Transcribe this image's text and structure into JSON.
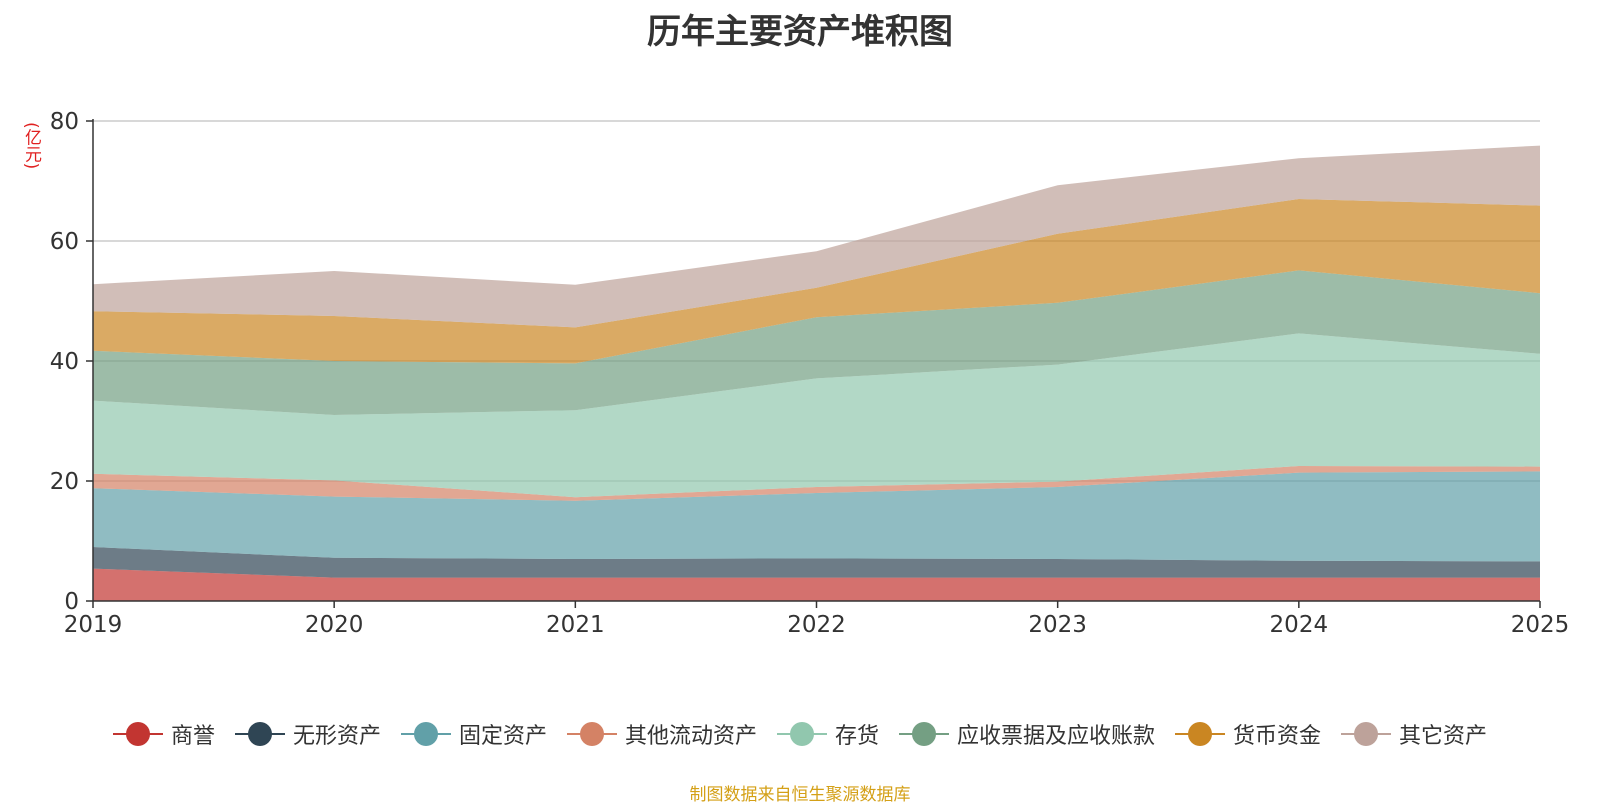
{
  "chart_data": {
    "type": "area",
    "stacked": true,
    "title": "历年主要资产堆积图",
    "unit_label": "(亿元)",
    "source": "制图数据来自恒生聚源数据库",
    "x": [
      "2019",
      "2020",
      "2021",
      "2022",
      "2023",
      "2024",
      "2025"
    ],
    "ylim": [
      0,
      80
    ],
    "yticks": [
      0,
      20,
      40,
      60,
      80
    ],
    "grid": true,
    "legend_position": "bottom",
    "series": [
      {
        "name": "商誉",
        "color": "#c23531",
        "values": [
          5.4,
          3.9,
          3.9,
          3.9,
          3.9,
          3.9,
          3.9
        ]
      },
      {
        "name": "无形资产",
        "color": "#2f4554",
        "values": [
          3.6,
          3.3,
          3.1,
          3.2,
          3.1,
          2.8,
          2.7
        ]
      },
      {
        "name": "固定资产",
        "color": "#61a0a8",
        "values": [
          9.8,
          10.2,
          9.7,
          10.9,
          12.0,
          14.7,
          15.0
        ]
      },
      {
        "name": "其他流动资产",
        "color": "#d48265",
        "values": [
          2.4,
          2.7,
          0.6,
          1.0,
          0.9,
          1.1,
          0.8
        ]
      },
      {
        "name": "存货",
        "color": "#91c7ae",
        "values": [
          12.2,
          10.9,
          14.5,
          18.1,
          19.5,
          22.1,
          18.8
        ]
      },
      {
        "name": "应收票据及应收账款",
        "color": "#749f83",
        "values": [
          8.3,
          9.0,
          7.8,
          10.2,
          10.3,
          10.5,
          10.1
        ]
      },
      {
        "name": "货币资金",
        "color": "#ca8622",
        "values": [
          6.6,
          7.5,
          6.0,
          4.9,
          11.5,
          11.9,
          14.6
        ]
      },
      {
        "name": "其它资产",
        "color": "#bda29a",
        "values": [
          4.5,
          7.5,
          7.1,
          6.1,
          8.1,
          6.8,
          10.0
        ]
      }
    ]
  }
}
